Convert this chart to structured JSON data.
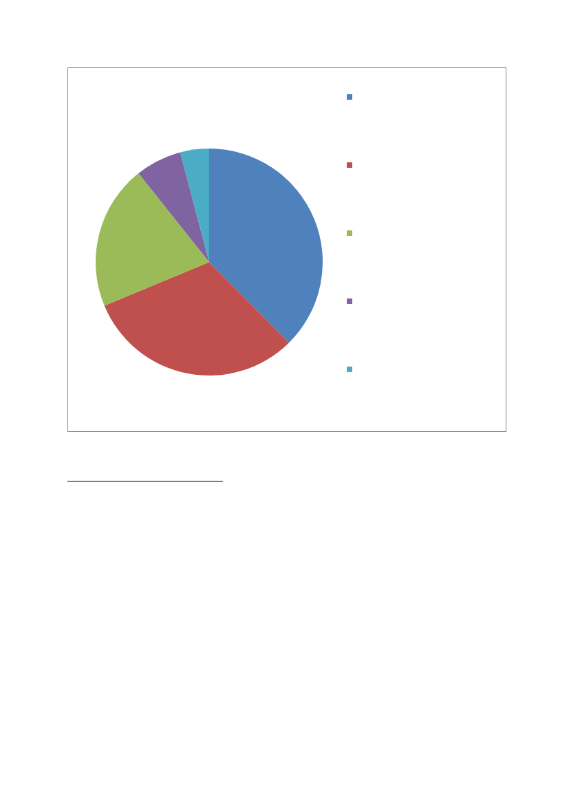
{
  "chart_data": {
    "type": "pie",
    "categories": [
      null,
      null,
      null,
      null,
      null
    ],
    "values": [
      37.6,
      31.1,
      20.6,
      6.6,
      4.1
    ],
    "colors": [
      "#4f81bd",
      "#c0504d",
      "#9bbb59",
      "#8064a2",
      "#4bacc6"
    ]
  }
}
